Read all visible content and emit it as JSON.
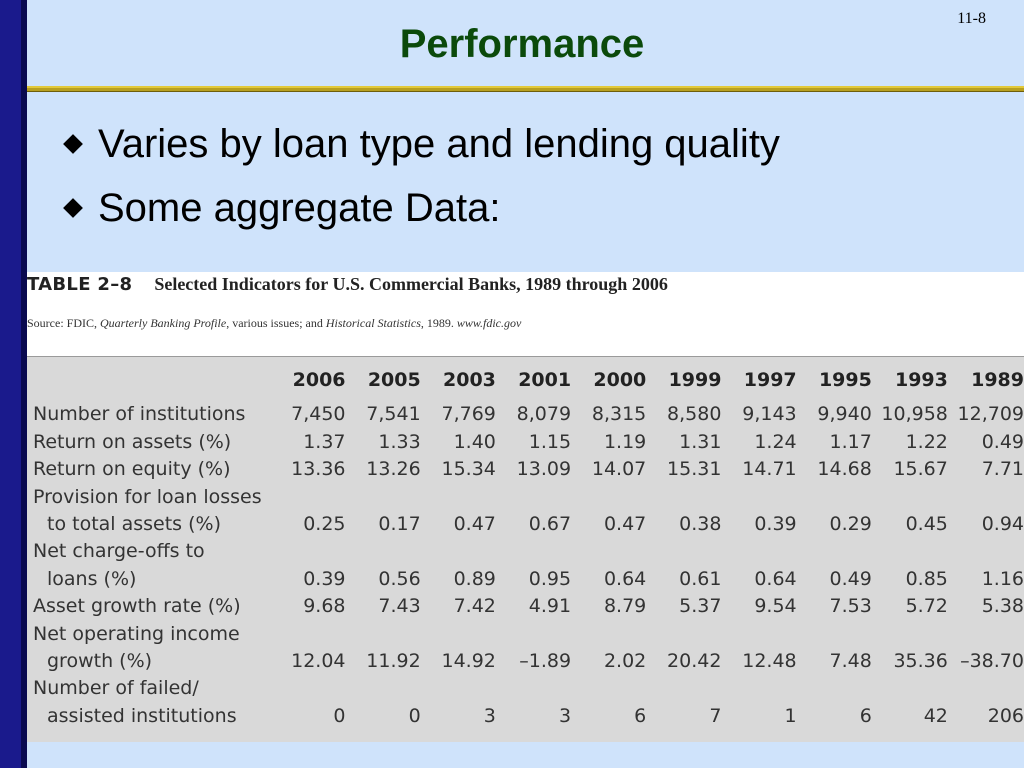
{
  "slide": {
    "number": "11-8",
    "title": "Performance",
    "bullets": [
      "Varies by loan type and lending quality",
      "Some aggregate Data:"
    ]
  },
  "table": {
    "table_number": "TABLE 2–8",
    "title": "Selected Indicators for U.S. Commercial Banks, 1989 through 2006",
    "source_prefix": "Source: FDIC, ",
    "source_italic_1": "Quarterly Banking Profile",
    "source_mid": ", various issues; and ",
    "source_italic_2": "Historical Statistics",
    "source_mid2": ", 1989. ",
    "source_italic_3": "www.fdic.gov",
    "years": [
      "2006",
      "2005",
      "2003",
      "2001",
      "2000",
      "1999",
      "1997",
      "1995",
      "1993",
      "1989"
    ],
    "rows": [
      {
        "label_1": "Number of institutions",
        "label_2": "",
        "values": [
          "7,450",
          "7,541",
          "7,769",
          "8,079",
          "8,315",
          "8,580",
          "9,143",
          "9,940",
          "10,958",
          "12,709"
        ]
      },
      {
        "label_1": "Return on assets (%)",
        "label_2": "",
        "values": [
          "1.37",
          "1.33",
          "1.40",
          "1.15",
          "1.19",
          "1.31",
          "1.24",
          "1.17",
          "1.22",
          "0.49"
        ]
      },
      {
        "label_1": "Return on equity (%)",
        "label_2": "",
        "values": [
          "13.36",
          "13.26",
          "15.34",
          "13.09",
          "14.07",
          "15.31",
          "14.71",
          "14.68",
          "15.67",
          "7.71"
        ]
      },
      {
        "label_1": "Provision for loan losses",
        "label_2": "to total assets (%)",
        "values": [
          "0.25",
          "0.17",
          "0.47",
          "0.67",
          "0.47",
          "0.38",
          "0.39",
          "0.29",
          "0.45",
          "0.94"
        ]
      },
      {
        "label_1": "Net charge-offs to",
        "label_2": "loans (%)",
        "values": [
          "0.39",
          "0.56",
          "0.89",
          "0.95",
          "0.64",
          "0.61",
          "0.64",
          "0.49",
          "0.85",
          "1.16"
        ]
      },
      {
        "label_1": "Asset growth rate (%)",
        "label_2": "",
        "values": [
          "9.68",
          "7.43",
          "7.42",
          "4.91",
          "8.79",
          "5.37",
          "9.54",
          "7.53",
          "5.72",
          "5.38"
        ]
      },
      {
        "label_1": "Net operating income",
        "label_2": "growth (%)",
        "values": [
          "12.04",
          "11.92",
          "14.92",
          "–1.89",
          "2.02",
          "20.42",
          "12.48",
          "7.48",
          "35.36",
          "–38.70"
        ]
      },
      {
        "label_1": "Number of failed/",
        "label_2": "assisted institutions",
        "values": [
          "0",
          "0",
          "3",
          "3",
          "6",
          "7",
          "1",
          "6",
          "42",
          "206"
        ]
      }
    ]
  },
  "colors": {
    "background": "#cfe3fb",
    "left_bar": "#1a1a8c",
    "title": "#0b4a0b",
    "rule": "#b8a020"
  }
}
